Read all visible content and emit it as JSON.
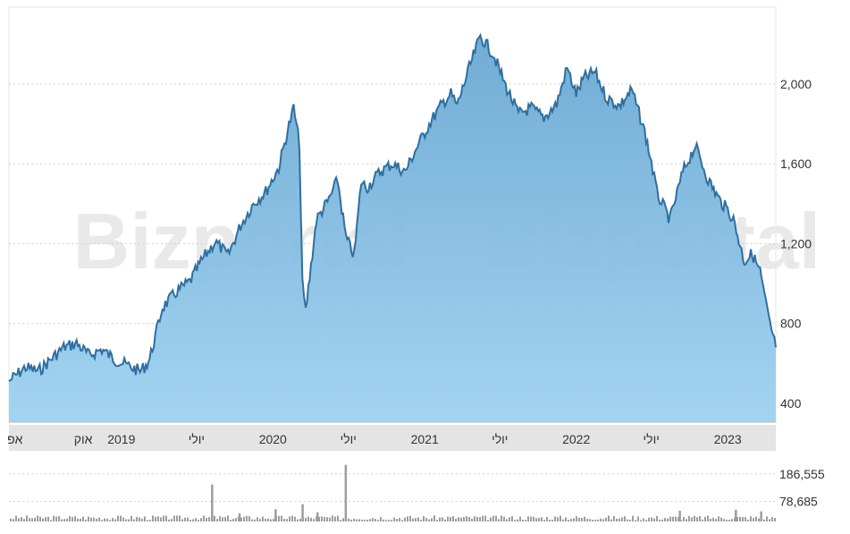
{
  "watermark": "Bizportal",
  "colors": {
    "line": "#2f6f9f",
    "fill_top": "#6aa7d2",
    "fill_bottom": "#9ed2f1",
    "volume": "#9d9d9d",
    "axis_band": "#e4e4e4",
    "grid": "#d0d0d0",
    "watermark": "#e9e9e9"
  },
  "chart_data": [
    {
      "type": "area",
      "title": "",
      "xlabel": "",
      "ylabel": "",
      "xlim": [
        "2018-04-05",
        "2023-04-27"
      ],
      "ylim": [
        305,
        2385
      ],
      "grid": true,
      "y_ticks": [
        "400",
        "800",
        "1,200",
        "1,600",
        "2,000"
      ],
      "y_tick_values": [
        400,
        800,
        1200,
        1600,
        2000
      ],
      "x_tick_labels": [
        "אפ",
        "אוק",
        "2019",
        "יולי",
        "2020",
        "יולי",
        "2021",
        "יולי",
        "2022",
        "יולי",
        "2023"
      ],
      "x_tick_dates": [
        "2018-04-01",
        "2018-10-01",
        "2019-01-01",
        "2019-07-01",
        "2020-01-01",
        "2020-07-01",
        "2021-01-01",
        "2021-07-01",
        "2022-01-01",
        "2022-07-01",
        "2023-01-01"
      ],
      "x": [
        "2018-04-05",
        "2018-05-15",
        "2018-06-15",
        "2018-07-15",
        "2018-08-15",
        "2018-09-15",
        "2018-10-15",
        "2018-11-15",
        "2018-12-15",
        "2019-01-15",
        "2019-02-15",
        "2019-03-01",
        "2019-03-10",
        "2019-04-10",
        "2019-05-15",
        "2019-06-15",
        "2019-07-15",
        "2019-08-15",
        "2019-09-15",
        "2019-10-15",
        "2019-11-15",
        "2019-12-15",
        "2020-01-15",
        "2020-02-05",
        "2020-02-20",
        "2020-03-05",
        "2020-03-12",
        "2020-03-20",
        "2020-04-15",
        "2020-05-15",
        "2020-06-05",
        "2020-06-25",
        "2020-07-15",
        "2020-08-01",
        "2020-08-15",
        "2020-09-15",
        "2020-10-15",
        "2020-11-15",
        "2020-12-15",
        "2021-01-15",
        "2021-02-15",
        "2021-03-05",
        "2021-03-20",
        "2021-04-15",
        "2021-05-15",
        "2021-06-15",
        "2021-07-15",
        "2021-08-15",
        "2021-09-15",
        "2021-10-15",
        "2021-11-15",
        "2021-12-10",
        "2022-01-01",
        "2022-01-20",
        "2022-02-15",
        "2022-03-15",
        "2022-04-15",
        "2022-05-15",
        "2022-06-15",
        "2022-07-01",
        "2022-07-15",
        "2022-08-15",
        "2022-09-15",
        "2022-10-15",
        "2022-11-15",
        "2022-12-15",
        "2023-01-01",
        "2023-01-15",
        "2023-02-10",
        "2023-03-01",
        "2023-03-20",
        "2023-04-10",
        "2023-04-27"
      ],
      "values": [
        510,
        580,
        560,
        620,
        680,
        700,
        640,
        670,
        620,
        590,
        560,
        590,
        620,
        880,
        960,
        1010,
        1120,
        1210,
        1140,
        1290,
        1400,
        1460,
        1580,
        1760,
        1880,
        1700,
        1000,
        860,
        1320,
        1420,
        1520,
        1230,
        1140,
        1510,
        1480,
        1560,
        1600,
        1560,
        1690,
        1810,
        1910,
        1950,
        1890,
        2060,
        2240,
        2150,
        1990,
        1850,
        1880,
        1830,
        1900,
        2080,
        1950,
        2030,
        2060,
        1930,
        1890,
        1970,
        1760,
        1610,
        1450,
        1320,
        1560,
        1690,
        1520,
        1410,
        1370,
        1320,
        1110,
        1150,
        1060,
        820,
        680
      ],
      "series": []
    },
    {
      "type": "bar",
      "title": "",
      "y_ticks": [
        "186,555",
        "78,685"
      ],
      "y_tick_values": [
        186555,
        78685
      ],
      "ylim": [
        0,
        270000
      ],
      "spikes": [
        {
          "x": "2019-08-05",
          "value": 145000
        },
        {
          "x": "2019-10-10",
          "value": 32000
        },
        {
          "x": "2020-01-05",
          "value": 48000
        },
        {
          "x": "2020-03-10",
          "value": 68000
        },
        {
          "x": "2020-04-15",
          "value": 36000
        },
        {
          "x": "2020-06-22",
          "value": 222000
        },
        {
          "x": "2022-09-05",
          "value": 42000
        },
        {
          "x": "2023-01-18",
          "value": 46000
        },
        {
          "x": "2023-03-20",
          "value": 40000
        }
      ],
      "typical_volume": 14000
    }
  ]
}
